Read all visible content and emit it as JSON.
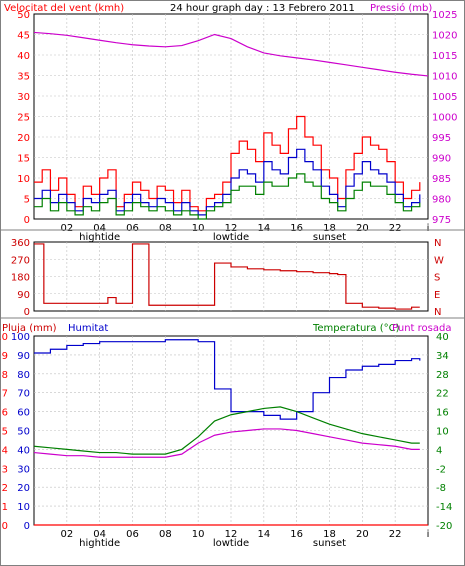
{
  "colors": {
    "red": "#ff0000",
    "darkred": "#cc0000",
    "blue": "#0000cc",
    "green": "#008000",
    "magenta": "#cc00cc",
    "grid": "#c0c0c0",
    "axis": "#000000"
  },
  "panels": {
    "top": {
      "title": "24 hour graph day : 13 Febrero 2011",
      "left_label": "Velocitat del vent (kmh)",
      "right_label": "Pressió (mb)",
      "left_ticks": [
        "50",
        "45",
        "40",
        "35",
        "30",
        "25",
        "20",
        "15",
        "10",
        "5",
        "0"
      ],
      "right_ticks": [
        "1025",
        "1020",
        "1015",
        "1010",
        "1005",
        "1000",
        "995",
        "990",
        "985",
        "980",
        "975"
      ]
    },
    "middle": {
      "left_ticks": [
        "360",
        "270",
        "180",
        "90",
        "0"
      ],
      "right_ticks": [
        "N",
        "W",
        "S",
        "E",
        "N"
      ]
    },
    "bottom": {
      "left_label_rain": "Pluja (mm)",
      "left_label_hum": "Humitat",
      "right_label_temp": "Temperatura (°C)",
      "right_label_dew": "Punt rosada",
      "left_ticks_rain": [
        "10",
        "9",
        "8",
        "7",
        "6",
        "5",
        "4",
        "3",
        "2",
        "1",
        "0"
      ],
      "left_ticks_hum": [
        "100",
        "90",
        "80",
        "70",
        "60",
        "50",
        "40",
        "30",
        "20",
        "10",
        "0"
      ],
      "right_ticks": [
        "40",
        "34",
        "28",
        "22",
        "16",
        "10",
        "4",
        "-2",
        "-8",
        "-14",
        "-20"
      ]
    },
    "x_ticks": [
      "02",
      "04",
      "06",
      "08",
      "10",
      "12",
      "14",
      "16",
      "18",
      "20",
      "22",
      "i"
    ],
    "x_events": [
      "hightide",
      "lowtide",
      "sunset"
    ]
  },
  "chart_data": [
    {
      "type": "line",
      "title": "24 hour graph day : 13 Febrero 2011",
      "xlabel": "",
      "ylabel": "Velocitat del vent (kmh)",
      "y2label": "Pressió (mb)",
      "ylim": [
        0,
        50
      ],
      "y2lim": [
        975,
        1025
      ],
      "x_range_hours": [
        0,
        24
      ],
      "grid": true,
      "series": [
        {
          "name": "Velocitat del vent (kmh)",
          "color": "#ff0000",
          "axis": "left",
          "x": [
            0,
            0.5,
            1,
            1.5,
            2,
            2.5,
            3,
            3.5,
            4,
            4.5,
            5,
            5.5,
            6,
            6.5,
            7,
            7.5,
            8,
            8.5,
            9,
            9.5,
            10,
            10.5,
            11,
            11.5,
            12,
            12.5,
            13,
            13.5,
            14,
            14.5,
            15,
            15.5,
            16,
            16.5,
            17,
            17.5,
            18,
            18.5,
            19,
            19.5,
            20,
            20.5,
            21,
            21.5,
            22,
            22.5,
            23,
            23.5
          ],
          "values": [
            9,
            12,
            7,
            10,
            6,
            3,
            8,
            6,
            10,
            12,
            3,
            6,
            9,
            7,
            5,
            8,
            7,
            4,
            7,
            3,
            2,
            5,
            6,
            9,
            16,
            19,
            17,
            14,
            21,
            18,
            16,
            22,
            25,
            20,
            18,
            12,
            10,
            5,
            12,
            16,
            20,
            18,
            17,
            14,
            9,
            5,
            7,
            9
          ]
        },
        {
          "name": "",
          "color": "#0000cc",
          "axis": "left",
          "x": [
            0,
            0.5,
            1,
            1.5,
            2,
            2.5,
            3,
            3.5,
            4,
            4.5,
            5,
            5.5,
            6,
            6.5,
            7,
            7.5,
            8,
            8.5,
            9,
            9.5,
            10,
            10.5,
            11,
            11.5,
            12,
            12.5,
            13,
            13.5,
            14,
            14.5,
            15,
            15.5,
            16,
            16.5,
            17,
            17.5,
            18,
            18.5,
            19,
            19.5,
            20,
            20.5,
            21,
            21.5,
            22,
            22.5,
            23,
            23.5
          ],
          "values": [
            5,
            7,
            4,
            6,
            4,
            2,
            5,
            4,
            6,
            7,
            2,
            4,
            6,
            4,
            3,
            5,
            4,
            2,
            4,
            2,
            1,
            3,
            4,
            6,
            10,
            12,
            11,
            9,
            14,
            12,
            11,
            15,
            17,
            14,
            12,
            8,
            6,
            3,
            8,
            11,
            14,
            12,
            11,
            9,
            6,
            3,
            4,
            6
          ]
        },
        {
          "name": "",
          "color": "#008000",
          "axis": "left",
          "x": [
            0,
            0.5,
            1,
            1.5,
            2,
            2.5,
            3,
            3.5,
            4,
            4.5,
            5,
            5.5,
            6,
            6.5,
            7,
            7.5,
            8,
            8.5,
            9,
            9.5,
            10,
            10.5,
            11,
            11.5,
            12,
            12.5,
            13,
            13.5,
            14,
            14.5,
            15,
            15.5,
            16,
            16.5,
            17,
            17.5,
            18,
            18.5,
            19,
            19.5,
            20,
            20.5,
            21,
            21.5,
            22,
            22.5,
            23,
            23.5
          ],
          "values": [
            3,
            5,
            2,
            4,
            2,
            1,
            3,
            2,
            4,
            5,
            1,
            2,
            4,
            3,
            2,
            3,
            2,
            1,
            2,
            1,
            0,
            2,
            3,
            4,
            7,
            8,
            8,
            6,
            9,
            8,
            8,
            10,
            11,
            9,
            8,
            5,
            4,
            2,
            5,
            7,
            9,
            8,
            8,
            6,
            4,
            2,
            3,
            4
          ]
        },
        {
          "name": "Pressió (mb)",
          "color": "#cc00cc",
          "axis": "right",
          "x": [
            0,
            1,
            2,
            3,
            4,
            5,
            6,
            7,
            8,
            9,
            10,
            11,
            12,
            13,
            14,
            15,
            16,
            17,
            18,
            19,
            20,
            21,
            22,
            23,
            24
          ],
          "values": [
            1020.5,
            1020.2,
            1019.8,
            1019.2,
            1018.6,
            1018.0,
            1017.5,
            1017.2,
            1017.0,
            1017.3,
            1018.5,
            1020.0,
            1019.0,
            1017.0,
            1015.5,
            1014.8,
            1014.3,
            1013.8,
            1013.2,
            1012.6,
            1012.0,
            1011.4,
            1010.8,
            1010.3,
            1009.9
          ]
        }
      ]
    },
    {
      "type": "line",
      "ylabel": "",
      "ylim": [
        0,
        360
      ],
      "y_tick_labels_right": [
        "N",
        "W",
        "S",
        "E",
        "N"
      ],
      "x_range_hours": [
        0,
        24
      ],
      "grid": true,
      "series": [
        {
          "name": "",
          "color": "#cc0000",
          "x": [
            0,
            0.3,
            0.6,
            2,
            4,
            4.5,
            5,
            6,
            6.3,
            7,
            8,
            9,
            9.5,
            10,
            11,
            12,
            13,
            14,
            15,
            16,
            17,
            18,
            18.5,
            19,
            20,
            21,
            22,
            23,
            23.5
          ],
          "values": [
            350,
            350,
            40,
            40,
            40,
            70,
            40,
            350,
            350,
            30,
            30,
            30,
            30,
            30,
            250,
            230,
            220,
            215,
            210,
            205,
            200,
            195,
            190,
            40,
            20,
            15,
            10,
            20,
            20
          ]
        }
      ]
    },
    {
      "type": "line",
      "ylabel": "Humitat",
      "y2label": "Temperatura (°C)",
      "ylim": [
        0,
        100
      ],
      "y2lim": [
        -20,
        40
      ],
      "x_range_hours": [
        0,
        24
      ],
      "grid": true,
      "series": [
        {
          "name": "Pluja (mm)",
          "color": "#ff0000",
          "axis": "left",
          "x": [
            0,
            24
          ],
          "values": [
            0,
            0
          ]
        },
        {
          "name": "Humitat",
          "color": "#0000cc",
          "axis": "left",
          "x": [
            0,
            1,
            2,
            3,
            4,
            5,
            6,
            7,
            8,
            9,
            10,
            11,
            12,
            13,
            14,
            15,
            16,
            17,
            18,
            19,
            20,
            21,
            22,
            23,
            23.5
          ],
          "values": [
            91,
            93,
            95,
            96,
            97,
            97,
            97,
            97,
            98,
            98,
            97,
            72,
            60,
            60,
            58,
            56,
            60,
            70,
            78,
            82,
            84,
            85,
            87,
            88,
            87
          ]
        },
        {
          "name": "Temperatura (°C)",
          "color": "#008000",
          "axis": "right",
          "x": [
            0,
            1,
            2,
            3,
            4,
            5,
            6,
            7,
            8,
            9,
            10,
            11,
            12,
            13,
            14,
            15,
            16,
            17,
            18,
            19,
            20,
            21,
            22,
            23,
            23.5
          ],
          "values": [
            5,
            4.5,
            4,
            3.5,
            3,
            3,
            2.5,
            2.5,
            2.5,
            4,
            8,
            13,
            15,
            16,
            17,
            17.5,
            16,
            14,
            12,
            10.5,
            9,
            8,
            7,
            6,
            6
          ]
        },
        {
          "name": "Punt rosada",
          "color": "#cc00cc",
          "axis": "right",
          "x": [
            0,
            1,
            2,
            3,
            4,
            5,
            6,
            7,
            8,
            9,
            10,
            11,
            12,
            13,
            14,
            15,
            16,
            17,
            18,
            19,
            20,
            21,
            22,
            23,
            23.5
          ],
          "values": [
            3,
            2.5,
            2,
            2,
            1.5,
            1.5,
            1.5,
            1.5,
            1.5,
            2.5,
            6,
            8.5,
            9.5,
            10,
            10.5,
            10.5,
            10,
            9,
            8,
            7,
            6,
            5.5,
            5,
            4,
            4
          ]
        }
      ]
    }
  ]
}
